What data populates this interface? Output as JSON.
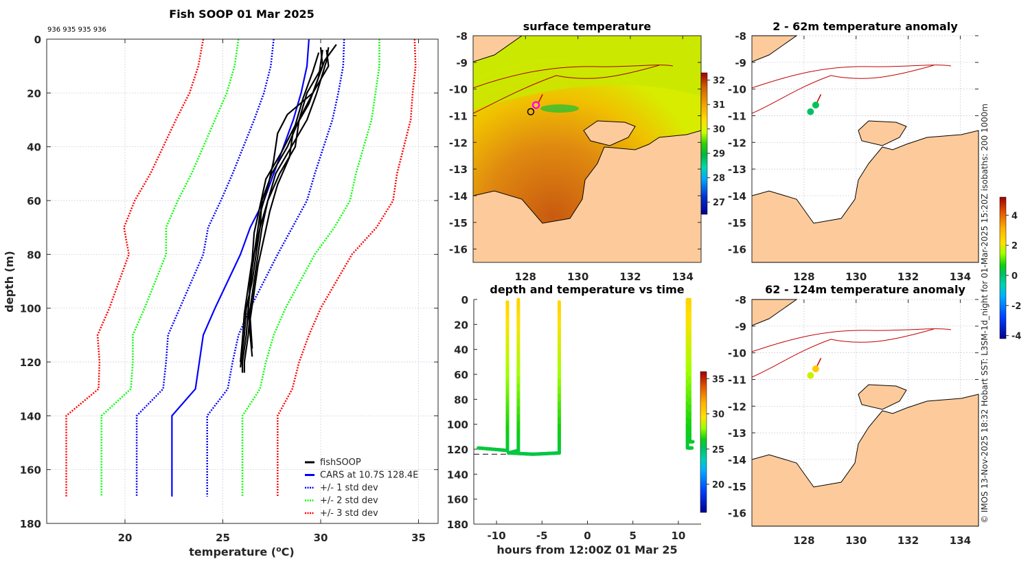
{
  "figure": {
    "credit_text": "© IMOS 13-Nov-2025 18:32 Hobart SST: L3SM-1d_night for 01-Mar-2025 15:20Z isobaths: 200  1000m"
  },
  "chart_data": [
    {
      "id": "profile",
      "type": "line",
      "title": "Fish SOOP 01 Mar 2025",
      "annotation": "936 935 935 936",
      "xlabel": "temperature (°C)",
      "xlabel_main": "temperature (",
      "xlabel_sup": "o",
      "xlabel_end": "C)",
      "ylabel": "depth (m)",
      "xlim": [
        16,
        36
      ],
      "ylim": [
        180,
        0
      ],
      "xticks": [
        20,
        25,
        30,
        35
      ],
      "yticks": [
        0,
        20,
        40,
        60,
        80,
        100,
        120,
        140,
        160,
        180
      ],
      "grid": true,
      "legend_position": "bottom-right",
      "legend": [
        {
          "label": "fishSOOP",
          "color": "#000000",
          "style": "solid"
        },
        {
          "label": "CARS at 10.7S 128.4E",
          "color": "#0000ff",
          "style": "solid"
        },
        {
          "label": "+/- 1 std dev",
          "color": "#0000ff",
          "style": "dotted"
        },
        {
          "label": "+/- 2 std dev",
          "color": "#00ff00",
          "style": "dotted"
        },
        {
          "label": "+/- 3 std dev",
          "color": "#ff0000",
          "style": "dotted"
        }
      ],
      "cars": {
        "depth": [
          0,
          10,
          20,
          30,
          40,
          50,
          60,
          70,
          80,
          100,
          110,
          120,
          130,
          140,
          170
        ],
        "mean": [
          29.4,
          29.3,
          29.0,
          28.6,
          28.1,
          27.6,
          27.1,
          26.4,
          25.9,
          24.6,
          24.0,
          23.8,
          23.6,
          22.4,
          22.4
        ],
        "sd1": [
          1.8,
          1.85,
          1.9,
          2.0,
          2.05,
          2.1,
          2.2,
          2.15,
          1.9,
          1.8,
          1.8,
          1.7,
          1.65,
          1.8,
          1.8
        ]
      },
      "fishsoop_profiles": [
        {
          "depth": [
            3,
            8,
            20,
            30,
            40,
            50,
            60,
            70,
            80,
            90,
            100,
            110,
            120,
            124
          ],
          "temp": [
            30.4,
            30.3,
            29.8,
            29.3,
            28.5,
            27.7,
            27.3,
            27.0,
            26.8,
            26.6,
            26.4,
            26.3,
            26.1,
            26.1
          ]
        },
        {
          "depth": [
            2,
            8,
            20,
            28,
            35,
            45,
            55,
            65,
            75,
            85,
            100,
            110,
            120,
            124
          ],
          "temp": [
            30.8,
            30.2,
            29.6,
            28.3,
            27.8,
            27.6,
            27.3,
            26.9,
            26.7,
            26.5,
            26.3,
            26.2,
            26.0,
            26.0
          ]
        },
        {
          "depth": [
            4,
            10,
            20,
            30,
            40,
            50,
            60,
            70,
            80,
            90,
            100,
            110,
            118
          ],
          "temp": [
            30.3,
            30.4,
            29.6,
            28.9,
            28.7,
            27.9,
            27.3,
            26.9,
            26.6,
            26.4,
            26.3,
            26.4,
            26.5
          ]
        },
        {
          "depth": [
            3,
            10,
            20,
            30,
            40,
            50,
            60,
            70,
            80,
            90,
            100,
            110,
            122
          ],
          "temp": [
            30.0,
            30.1,
            29.3,
            28.9,
            28.3,
            27.5,
            27.0,
            26.9,
            26.7,
            26.5,
            26.2,
            26.1,
            25.9
          ]
        },
        {
          "depth": [
            5,
            12,
            22,
            32,
            42,
            52,
            62,
            72,
            82,
            92,
            102,
            112,
            120
          ],
          "temp": [
            29.9,
            29.6,
            29.1,
            28.7,
            28.0,
            27.2,
            26.9,
            26.6,
            26.5,
            26.3,
            26.1,
            26.0,
            25.9
          ]
        },
        {
          "depth": [
            4,
            14,
            24,
            34,
            44,
            54,
            64,
            74,
            84,
            94,
            104,
            115
          ],
          "temp": [
            30.1,
            29.9,
            29.4,
            28.6,
            28.4,
            27.8,
            27.4,
            27.1,
            26.8,
            26.6,
            26.4,
            26.5
          ]
        }
      ]
    },
    {
      "id": "surface_temp",
      "type": "heatmap",
      "title": "surface temperature",
      "xlim": [
        126,
        134.7
      ],
      "ylim": [
        -16.5,
        -8
      ],
      "xticks": [
        128,
        130,
        132,
        134
      ],
      "yticks": [
        -8,
        -9,
        -10,
        -11,
        -12,
        -13,
        -14,
        -15,
        -16
      ],
      "colorbar": {
        "min": 26.5,
        "max": 32.3,
        "ticks": [
          27,
          28,
          29,
          30,
          31,
          32
        ]
      },
      "markers": [
        {
          "lon": 128.4,
          "lat": -10.6,
          "edge": "#ff00ff",
          "label": "latest"
        },
        {
          "lon": 128.2,
          "lat": -10.85,
          "edge": "#000000",
          "label": "previous"
        }
      ]
    },
    {
      "id": "depth_time",
      "type": "scatter",
      "title": "depth and temperature vs time",
      "xlabel": "hours from 12:00Z 01 Mar 25",
      "xlim": [
        -12.5,
        12.5
      ],
      "ylim": [
        180,
        0
      ],
      "xticks": [
        -10,
        -5,
        0,
        5,
        10
      ],
      "yticks": [
        0,
        20,
        40,
        60,
        80,
        100,
        120,
        140,
        160,
        180
      ],
      "colorbar": {
        "min": 16,
        "max": 36,
        "ticks": [
          20,
          25,
          30,
          35
        ]
      },
      "tracks": [
        {
          "hours": [
            -12,
            -8.8,
            -8.8,
            -8.8
          ],
          "depth": [
            119,
            121,
            60,
            2
          ]
        },
        {
          "hours": [
            -8.7,
            -7.6,
            -7.6
          ],
          "depth": [
            123,
            121,
            0
          ]
        },
        {
          "hours": [
            -8.6,
            -6,
            -3.1,
            -3.1
          ],
          "depth": [
            123,
            124,
            123,
            2
          ]
        },
        {
          "hours": [
            11.0,
            11.0,
            11.5
          ],
          "depth": [
            0,
            119,
            119
          ]
        },
        {
          "hours": [
            11.25,
            11.25,
            11.6
          ],
          "depth": [
            0,
            114,
            114
          ]
        }
      ],
      "bottom_line_depth": 124
    },
    {
      "id": "anomaly_2_62",
      "type": "scatter",
      "title": "2 - 62m temperature anomaly",
      "xlim": [
        126,
        134.7
      ],
      "ylim": [
        -16.5,
        -8
      ],
      "xticks": [
        128,
        130,
        132,
        134
      ],
      "yticks": [
        -8,
        -9,
        -10,
        -11,
        -12,
        -13,
        -14,
        -15,
        -16
      ],
      "points": [
        {
          "lon": 128.45,
          "lat": -10.6,
          "anomaly": 0.2
        },
        {
          "lon": 128.25,
          "lat": -10.85,
          "anomaly": 0.1
        }
      ]
    },
    {
      "id": "anomaly_62_124",
      "type": "scatter",
      "title": "62 - 124m temperature anomaly",
      "xlim": [
        126,
        134.7
      ],
      "ylim": [
        -16.5,
        -8
      ],
      "xticks": [
        128,
        130,
        132,
        134
      ],
      "yticks": [
        -8,
        -9,
        -10,
        -11,
        -12,
        -13,
        -14,
        -15,
        -16
      ],
      "colorbar": {
        "min": -4.2,
        "max": 5.2,
        "ticks": [
          -4,
          -2,
          0,
          2,
          4
        ]
      },
      "points": [
        {
          "lon": 128.45,
          "lat": -10.6,
          "anomaly": 2.6
        },
        {
          "lon": 128.25,
          "lat": -10.85,
          "anomaly": 1.8
        }
      ]
    }
  ]
}
